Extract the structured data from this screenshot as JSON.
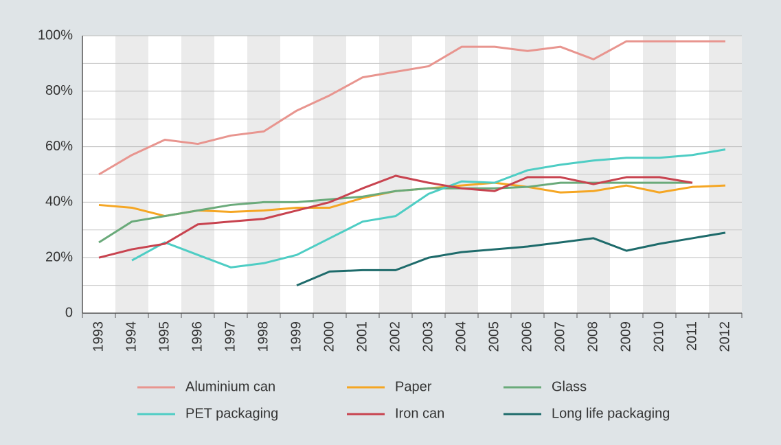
{
  "chart_data": {
    "type": "line",
    "categories": [
      "1993",
      "1994",
      "1995",
      "1996",
      "1997",
      "1998",
      "1999",
      "2000",
      "2001",
      "2002",
      "2003",
      "2004",
      "2005",
      "2006",
      "2007",
      "2008",
      "2009",
      "2010",
      "2011",
      "2012"
    ],
    "series": [
      {
        "name": "Aluminium can",
        "color": "#e8958f",
        "values": [
          50,
          57,
          62.5,
          61,
          64,
          65.5,
          73,
          78.5,
          85,
          87,
          89,
          96,
          96,
          94.5,
          96,
          91.5,
          98,
          98,
          98,
          98
        ]
      },
      {
        "name": "Paper",
        "color": "#f5a623",
        "values": [
          39,
          38,
          35,
          37,
          36.5,
          37,
          38,
          38,
          41.5,
          44,
          45,
          46,
          47,
          45.5,
          43.5,
          44,
          46,
          43.5,
          45.5,
          46
        ]
      },
      {
        "name": "Glass",
        "color": "#6aaa7a",
        "values": [
          25.5,
          33,
          35,
          37,
          39,
          40,
          40,
          41,
          42,
          44,
          45,
          45,
          45,
          45.5,
          47,
          47,
          47,
          47,
          47,
          null
        ]
      },
      {
        "name": "PET packaging",
        "color": "#4ecdc4",
        "values": [
          null,
          19,
          25.5,
          21,
          16.5,
          18,
          21,
          27,
          33,
          35,
          43,
          47.5,
          47,
          51.5,
          53.5,
          55,
          56,
          56,
          57,
          59
        ]
      },
      {
        "name": "Iron can",
        "color": "#c8434f",
        "values": [
          20,
          23,
          25,
          32,
          33,
          34,
          37,
          40,
          45,
          49.5,
          47,
          45,
          44,
          49,
          49,
          46.5,
          49,
          49,
          47,
          null
        ]
      },
      {
        "name": "Long life packaging",
        "color": "#1e6b6b",
        "values": [
          null,
          null,
          null,
          null,
          null,
          null,
          10,
          15,
          15.5,
          15.5,
          20,
          22,
          23,
          24,
          25.5,
          27,
          22.5,
          25,
          27,
          29
        ]
      }
    ],
    "ylim": [
      0,
      100
    ],
    "yticks": [
      0,
      {
        "value": 20,
        "label": "20%"
      },
      {
        "value": 40,
        "label": "40%"
      },
      {
        "value": 60,
        "label": "60%"
      },
      {
        "value": 80,
        "label": "80%"
      },
      {
        "value": 100,
        "label": "100%"
      }
    ],
    "minor_yticks": [
      10,
      30,
      50,
      70,
      90
    ],
    "grid": true
  }
}
